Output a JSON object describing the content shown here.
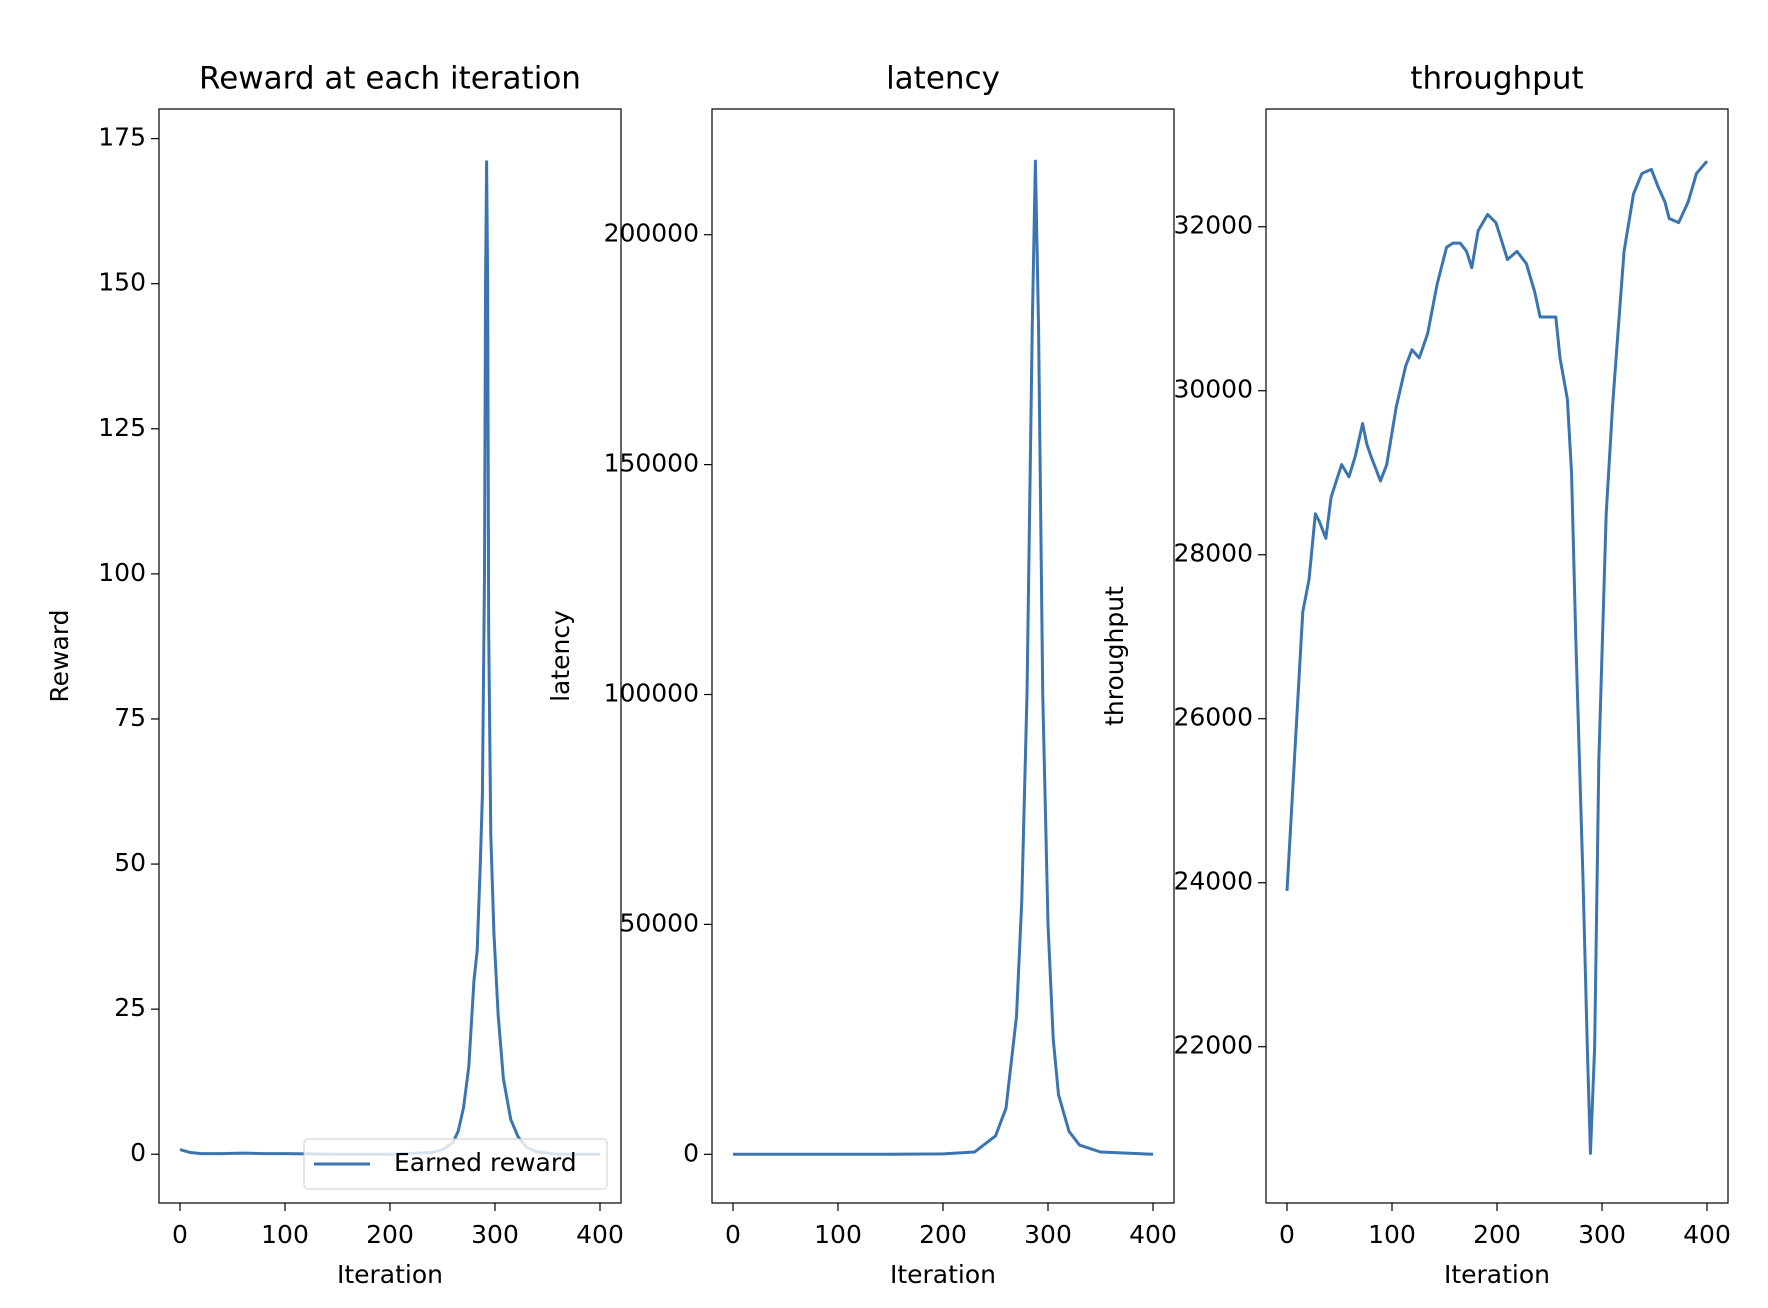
{
  "chart_data": [
    {
      "type": "line",
      "title": "Reward at each iteration",
      "xlabel": "Iteration",
      "ylabel": "Reward",
      "x": [
        0,
        10,
        20,
        40,
        60,
        80,
        100,
        150,
        200,
        240,
        250,
        260,
        265,
        270,
        275,
        280,
        283,
        286,
        288,
        290,
        291,
        292,
        293,
        294,
        296,
        299,
        303,
        308,
        315,
        322,
        330,
        340,
        360,
        400
      ],
      "series": [
        {
          "name": "Earned reward",
          "color": "#3b75af",
          "values": [
            0.8,
            0.3,
            0.1,
            0.1,
            0.2,
            0.1,
            0.1,
            0.0,
            0.0,
            0.3,
            0.8,
            2,
            4,
            8,
            15,
            30,
            35,
            50,
            62,
            100,
            150,
            171,
            150,
            90,
            55,
            38,
            24,
            13,
            6,
            3,
            1.2,
            0.4,
            0,
            0
          ]
        }
      ],
      "xlim": [
        -20,
        420
      ],
      "ylim": [
        -8.4,
        180.1
      ],
      "xticks": [
        0,
        100,
        200,
        300,
        400
      ],
      "yticks": [
        0,
        25,
        50,
        75,
        100,
        125,
        150,
        175
      ],
      "legend": "lower right"
    },
    {
      "type": "line",
      "title": "latency",
      "xlabel": "Iteration",
      "ylabel": "latency",
      "x": [
        0,
        50,
        100,
        150,
        200,
        230,
        250,
        260,
        270,
        275,
        280,
        285,
        288,
        291,
        295,
        300,
        305,
        310,
        320,
        330,
        350,
        400
      ],
      "series": [
        {
          "color": "#3b75af",
          "values": [
            0,
            0,
            0,
            0,
            100,
            500,
            4000,
            10000,
            30000,
            55000,
            100000,
            180000,
            216000,
            180000,
            100000,
            50000,
            25000,
            13000,
            5000,
            2000,
            500,
            0
          ]
        }
      ],
      "xlim": [
        -20,
        420
      ],
      "ylim": [
        -10590,
        227340
      ],
      "xticks": [
        0,
        100,
        200,
        300,
        400
      ],
      "yticks": [
        0,
        50000,
        100000,
        150000,
        200000
      ]
    },
    {
      "type": "line",
      "title": "throughput",
      "xlabel": "Iteration",
      "ylabel": "throughput",
      "x": [
        0,
        15,
        21,
        27,
        31,
        37,
        42,
        52,
        59,
        65,
        72,
        76,
        80,
        89,
        95,
        104,
        113,
        119,
        126,
        134,
        143,
        152,
        158,
        165,
        171,
        176,
        182,
        191,
        199,
        210,
        219,
        228,
        236,
        241,
        249,
        256,
        260,
        267,
        271,
        275,
        282,
        286,
        289,
        293,
        297,
        304,
        310,
        314,
        321,
        330,
        338,
        347,
        353,
        360,
        364,
        373,
        382,
        390,
        400
      ],
      "series": [
        {
          "color": "#3b75af",
          "values": [
            23900,
            27300,
            27700,
            28500,
            28400,
            28200,
            28700,
            29100,
            28950,
            29200,
            29600,
            29350,
            29200,
            28900,
            29100,
            29800,
            30300,
            30500,
            30400,
            30700,
            31300,
            31750,
            31800,
            31800,
            31700,
            31500,
            31950,
            32150,
            32050,
            31600,
            31700,
            31550,
            31200,
            30900,
            30900,
            30900,
            30400,
            29900,
            29000,
            27000,
            24000,
            22000,
            20700,
            22000,
            25500,
            28500,
            29800,
            30500,
            31700,
            32400,
            32650,
            32700,
            32500,
            32300,
            32100,
            32050,
            32300,
            32650,
            32800
          ]
        }
      ],
      "xlim": [
        -20,
        420
      ],
      "ylim": [
        20094,
        33436
      ],
      "xticks": [
        0,
        100,
        200,
        300,
        400
      ],
      "yticks": [
        22000,
        24000,
        26000,
        28000,
        30000,
        32000
      ]
    }
  ]
}
